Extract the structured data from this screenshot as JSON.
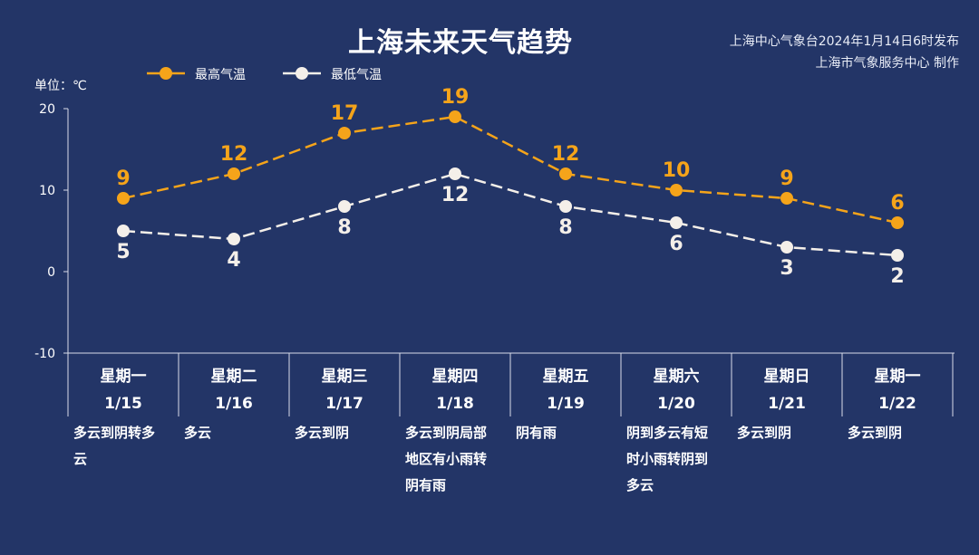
{
  "header": {
    "title": "上海未来天气趋势",
    "issuer_line1": "上海中心气象台2024年1月14日6时发布",
    "issuer_line2": "上海市气象服务中心 制作",
    "unit": "单位：℃"
  },
  "colors": {
    "background": "#233567",
    "high": "#f5a41a",
    "low": "#f4efe9",
    "axis": "#d8dce8"
  },
  "chart_data": {
    "type": "line",
    "ylim": [
      -10,
      20
    ],
    "yticks": [
      -10,
      0,
      10,
      20
    ],
    "ytick_labels": [
      "-10",
      "0",
      "10",
      "20"
    ],
    "legend_placement": "top-left",
    "grid": false,
    "x": [
      {
        "day": "星期一",
        "date": "1/15",
        "weather_lines": [
          "多云到阴转多",
          "云"
        ]
      },
      {
        "day": "星期二",
        "date": "1/16",
        "weather_lines": [
          "多云"
        ]
      },
      {
        "day": "星期三",
        "date": "1/17",
        "weather_lines": [
          "多云到阴"
        ]
      },
      {
        "day": "星期四",
        "date": "1/18",
        "weather_lines": [
          "多云到阴局部",
          "地区有小雨转",
          "阴有雨"
        ]
      },
      {
        "day": "星期五",
        "date": "1/19",
        "weather_lines": [
          "阴有雨"
        ]
      },
      {
        "day": "星期六",
        "date": "1/20",
        "weather_lines": [
          "阴到多云有短",
          "时小雨转阴到",
          "多云"
        ]
      },
      {
        "day": "星期日",
        "date": "1/21",
        "weather_lines": [
          "多云到阴"
        ]
      },
      {
        "day": "星期一",
        "date": "1/22",
        "weather_lines": [
          "多云到阴"
        ]
      }
    ],
    "series": [
      {
        "name": "最高气温",
        "key": "high",
        "values": [
          9,
          12,
          17,
          19,
          12,
          10,
          9,
          6
        ]
      },
      {
        "name": "最低气温",
        "key": "low",
        "values": [
          5,
          4,
          8,
          12,
          8,
          6,
          3,
          2
        ]
      }
    ]
  }
}
